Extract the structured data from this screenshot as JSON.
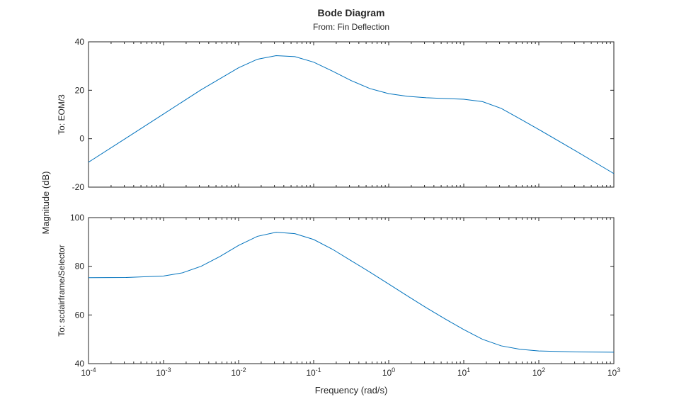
{
  "chart_data": {
    "type": "line",
    "title": "Bode Diagram",
    "subtitle": "From: Fin Deflection",
    "xlabel": "Frequency (rad/s)",
    "ylabel": "Magnitude (dB)",
    "xscale": "log",
    "xlim": [
      0.0001,
      1000
    ],
    "x_ticks": [
      {
        "base": "10",
        "exp": "-4"
      },
      {
        "base": "10",
        "exp": "-3"
      },
      {
        "base": "10",
        "exp": "-2"
      },
      {
        "base": "10",
        "exp": "-1"
      },
      {
        "base": "10",
        "exp": "0"
      },
      {
        "base": "10",
        "exp": "1"
      },
      {
        "base": "10",
        "exp": "2"
      },
      {
        "base": "10",
        "exp": "3"
      }
    ],
    "grid": false,
    "line_color": "#0072bd",
    "panels": [
      {
        "row_label": "To: EOM/3",
        "ylim": [
          -20,
          40
        ],
        "y_ticks": [
          "-20",
          "0",
          "20",
          "40"
        ],
        "x": [
          0.0001,
          0.000316,
          0.001,
          0.00316,
          0.01,
          0.0178,
          0.0316,
          0.0562,
          0.1,
          0.178,
          0.316,
          0.562,
          1,
          1.78,
          3.16,
          5.62,
          10,
          17.8,
          31.6,
          56.2,
          100,
          316,
          1000
        ],
        "y": [
          -9.7,
          0.2,
          10.2,
          20.2,
          29.3,
          32.8,
          34.3,
          33.9,
          31.6,
          27.9,
          24.0,
          20.7,
          18.6,
          17.5,
          16.9,
          16.6,
          16.3,
          15.3,
          12.5,
          8.2,
          3.8,
          -5.2,
          -14.4
        ]
      },
      {
        "row_label": "To: scdairframe/Selector",
        "ylim": [
          40,
          100
        ],
        "y_ticks": [
          "40",
          "60",
          "80",
          "100"
        ],
        "x": [
          0.0001,
          0.000316,
          0.001,
          0.00178,
          0.00316,
          0.00562,
          0.01,
          0.0178,
          0.0316,
          0.0562,
          0.1,
          0.178,
          0.316,
          0.562,
          1,
          1.78,
          3.16,
          5.62,
          10,
          17.8,
          31.6,
          56.2,
          100,
          316,
          1000
        ],
        "y": [
          75.3,
          75.4,
          76.0,
          77.3,
          80.0,
          84.0,
          88.6,
          92.3,
          94.0,
          93.4,
          91.0,
          87.0,
          82.3,
          77.6,
          72.7,
          67.8,
          63.0,
          58.4,
          54.0,
          50.0,
          47.3,
          45.9,
          45.2,
          44.8,
          44.7
        ]
      }
    ]
  }
}
